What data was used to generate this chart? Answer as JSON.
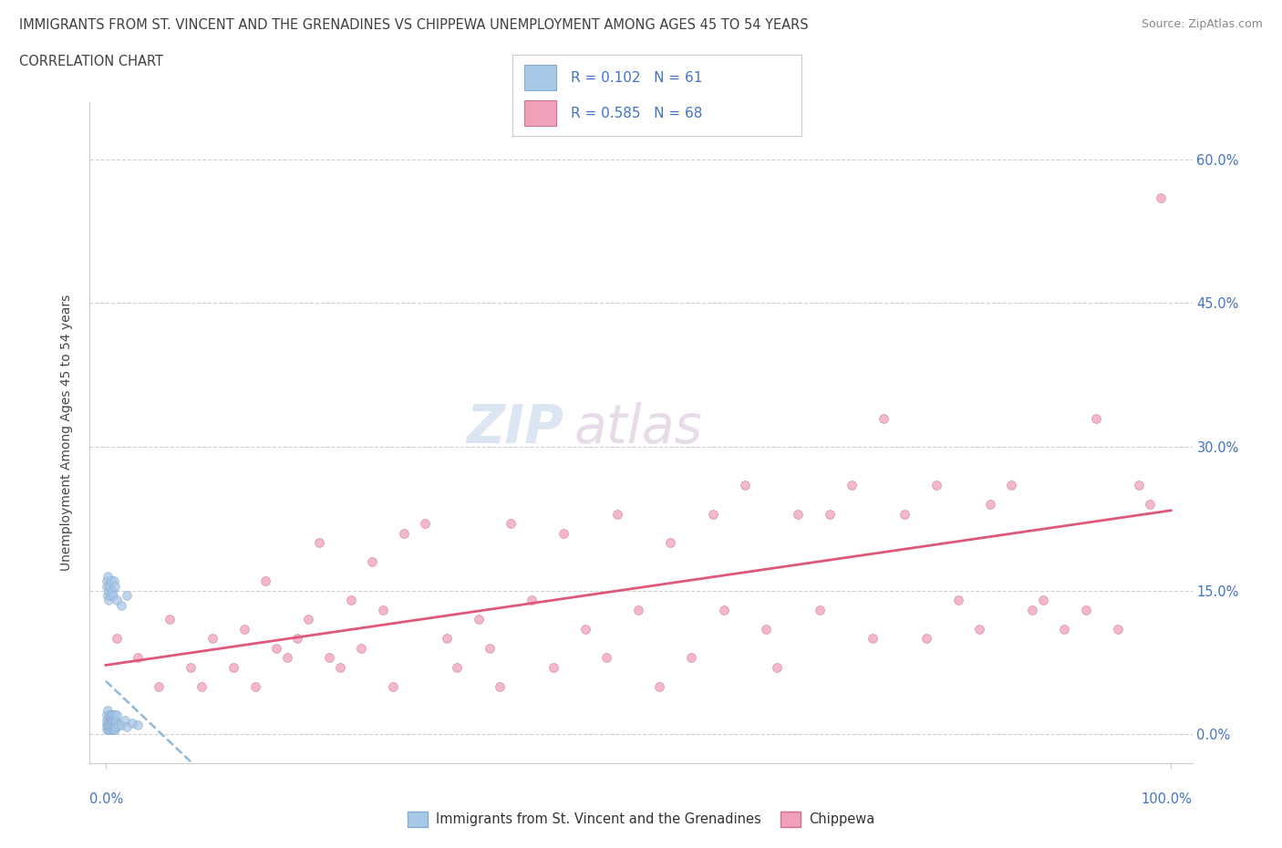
{
  "title_line1": "IMMIGRANTS FROM ST. VINCENT AND THE GRENADINES VS CHIPPEWA UNEMPLOYMENT AMONG AGES 45 TO 54 YEARS",
  "title_line2": "CORRELATION CHART",
  "source": "Source: ZipAtlas.com",
  "ylabel": "Unemployment Among Ages 45 to 54 years",
  "ytick_values": [
    0,
    15,
    30,
    45,
    60
  ],
  "ytick_labels": [
    "0.0%",
    "15.0%",
    "30.0%",
    "45.0%",
    "60.0%"
  ],
  "blue_R": 0.102,
  "blue_N": 61,
  "pink_R": 0.585,
  "pink_N": 68,
  "blue_color": "#a8c8e8",
  "pink_color": "#f0a0b8",
  "blue_edge_color": "#88aacc",
  "pink_edge_color": "#d07090",
  "blue_line_color": "#90b8d8",
  "pink_line_color": "#e05878",
  "legend_blue": "Immigrants from St. Vincent and the Grenadines",
  "legend_pink": "Chippewa",
  "text_color": "#4472c4",
  "title_color": "#404040",
  "source_color": "#888888",
  "blue_scatter_x": [
    0.05,
    0.08,
    0.1,
    0.12,
    0.15,
    0.18,
    0.2,
    0.22,
    0.25,
    0.28,
    0.3,
    0.32,
    0.35,
    0.38,
    0.4,
    0.42,
    0.45,
    0.48,
    0.5,
    0.52,
    0.55,
    0.58,
    0.6,
    0.62,
    0.65,
    0.68,
    0.7,
    0.72,
    0.75,
    0.78,
    0.8,
    0.82,
    0.85,
    0.88,
    0.9,
    0.92,
    0.95,
    0.98,
    1.0,
    1.2,
    1.5,
    1.8,
    2.0,
    2.5,
    3.0,
    0.05,
    0.1,
    0.15,
    0.2,
    0.25,
    0.3,
    0.35,
    0.4,
    0.5,
    0.6,
    0.7,
    0.8,
    0.9,
    1.0,
    1.5,
    2.0
  ],
  "blue_scatter_y": [
    1.0,
    0.5,
    2.0,
    1.5,
    0.8,
    1.2,
    2.5,
    0.5,
    1.0,
    1.8,
    0.8,
    1.5,
    2.0,
    0.5,
    1.2,
    1.8,
    0.8,
    1.5,
    2.0,
    0.5,
    1.2,
    0.8,
    1.5,
    2.0,
    0.5,
    1.2,
    0.8,
    1.5,
    2.0,
    0.5,
    1.2,
    0.8,
    1.5,
    2.0,
    0.5,
    1.2,
    0.8,
    1.5,
    2.0,
    1.0,
    1.0,
    1.5,
    0.8,
    1.2,
    1.0,
    16.0,
    15.5,
    14.5,
    16.5,
    15.0,
    14.0,
    15.5,
    14.5,
    16.0,
    15.0,
    14.5,
    16.0,
    15.5,
    14.0,
    13.5,
    14.5
  ],
  "pink_scatter_x": [
    1.0,
    3.0,
    5.0,
    6.0,
    8.0,
    9.0,
    10.0,
    12.0,
    13.0,
    14.0,
    15.0,
    16.0,
    17.0,
    18.0,
    19.0,
    20.0,
    21.0,
    22.0,
    23.0,
    24.0,
    25.0,
    26.0,
    27.0,
    28.0,
    30.0,
    32.0,
    33.0,
    35.0,
    36.0,
    37.0,
    38.0,
    40.0,
    42.0,
    43.0,
    45.0,
    47.0,
    48.0,
    50.0,
    52.0,
    53.0,
    55.0,
    57.0,
    58.0,
    60.0,
    62.0,
    63.0,
    65.0,
    67.0,
    68.0,
    70.0,
    72.0,
    73.0,
    75.0,
    77.0,
    78.0,
    80.0,
    82.0,
    83.0,
    85.0,
    87.0,
    88.0,
    90.0,
    92.0,
    93.0,
    95.0,
    97.0,
    98.0,
    99.0
  ],
  "pink_scatter_y": [
    10.0,
    8.0,
    5.0,
    12.0,
    7.0,
    5.0,
    10.0,
    7.0,
    11.0,
    5.0,
    16.0,
    9.0,
    8.0,
    10.0,
    12.0,
    20.0,
    8.0,
    7.0,
    14.0,
    9.0,
    18.0,
    13.0,
    5.0,
    21.0,
    22.0,
    10.0,
    7.0,
    12.0,
    9.0,
    5.0,
    22.0,
    14.0,
    7.0,
    21.0,
    11.0,
    8.0,
    23.0,
    13.0,
    5.0,
    20.0,
    8.0,
    23.0,
    13.0,
    26.0,
    11.0,
    7.0,
    23.0,
    13.0,
    23.0,
    26.0,
    10.0,
    33.0,
    23.0,
    10.0,
    26.0,
    14.0,
    11.0,
    24.0,
    26.0,
    13.0,
    14.0,
    11.0,
    13.0,
    33.0,
    11.0,
    26.0,
    24.0,
    56.0
  ]
}
